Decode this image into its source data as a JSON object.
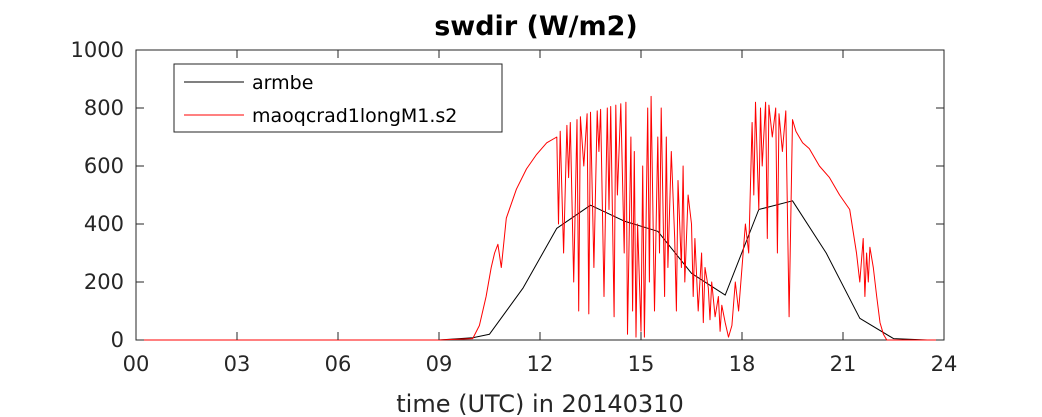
{
  "chart_data": {
    "type": "line",
    "title": "swdir  (W/m2)",
    "xlabel": "time (UTC) in 20140310",
    "ylabel": "",
    "xlim": [
      0,
      24
    ],
    "ylim": [
      0,
      1000
    ],
    "xticks": [
      0,
      3,
      6,
      9,
      12,
      15,
      18,
      21,
      24
    ],
    "xtick_labels": [
      "00",
      "03",
      "06",
      "09",
      "12",
      "15",
      "18",
      "21",
      "24"
    ],
    "yticks": [
      0,
      200,
      400,
      600,
      800,
      1000
    ],
    "ytick_labels": [
      "0",
      "200",
      "400",
      "600",
      "800",
      "1000"
    ],
    "grid": false,
    "legend_position": "top-left",
    "series": [
      {
        "name": "armbe",
        "color": "#000000",
        "x": [
          0,
          1,
          2,
          3,
          4,
          5,
          6,
          7,
          8,
          9,
          10,
          10.5,
          11.5,
          12.5,
          13.5,
          14.5,
          15.5,
          16.5,
          17.5,
          18.5,
          19.5,
          20.5,
          21.5,
          22.5,
          23.5,
          24
        ],
        "y": [
          0,
          0,
          0,
          0,
          0,
          0,
          0,
          0,
          0,
          0,
          8,
          20,
          180,
          385,
          465,
          410,
          375,
          230,
          155,
          450,
          480,
          300,
          75,
          5,
          0,
          0
        ]
      },
      {
        "name": "maoqcrad1longM1.s2",
        "color": "#ff0000",
        "x": [
          0,
          9,
          10.0,
          10.2,
          10.4,
          10.55,
          10.65,
          10.75,
          10.85,
          11.0,
          11.3,
          11.6,
          11.9,
          12.2,
          12.5,
          12.55,
          12.6,
          12.7,
          12.8,
          12.85,
          12.9,
          13.0,
          13.1,
          13.15,
          13.2,
          13.3,
          13.4,
          13.45,
          13.5,
          13.6,
          13.7,
          13.75,
          13.8,
          13.9,
          14.0,
          14.05,
          14.1,
          14.2,
          14.25,
          14.3,
          14.4,
          14.5,
          14.55,
          14.6,
          14.7,
          14.75,
          14.8,
          14.85,
          14.9,
          15.0,
          15.05,
          15.1,
          15.2,
          15.25,
          15.3,
          15.4,
          15.5,
          15.55,
          15.6,
          15.7,
          15.75,
          15.8,
          15.9,
          16.0,
          16.05,
          16.1,
          16.2,
          16.25,
          16.3,
          16.4,
          16.5,
          16.55,
          16.6,
          16.7,
          16.8,
          16.85,
          16.9,
          17.0,
          17.05,
          17.1,
          17.2,
          17.3,
          17.35,
          17.4,
          17.5,
          17.6,
          17.7,
          17.8,
          17.9,
          18.0,
          18.1,
          18.2,
          18.3,
          18.35,
          18.4,
          18.5,
          18.55,
          18.6,
          18.7,
          18.75,
          18.8,
          18.9,
          19.0,
          19.05,
          19.1,
          19.2,
          19.3,
          19.4,
          19.5,
          19.6,
          19.7,
          19.8,
          20.0,
          20.3,
          20.6,
          20.9,
          21.2,
          21.4,
          21.5,
          21.6,
          21.65,
          21.7,
          21.75,
          21.8,
          21.9,
          22.0,
          22.1,
          22.2,
          22.3,
          22.5,
          23,
          24
        ],
        "y": [
          0,
          0,
          5,
          50,
          150,
          250,
          300,
          330,
          250,
          420,
          520,
          590,
          640,
          680,
          700,
          400,
          720,
          300,
          740,
          560,
          750,
          200,
          760,
          100,
          770,
          600,
          780,
          90,
          785,
          250,
          790,
          650,
          795,
          150,
          800,
          450,
          805,
          80,
          810,
          500,
          815,
          300,
          820,
          20,
          700,
          100,
          650,
          10,
          400,
          30,
          600,
          10,
          800,
          200,
          840,
          100,
          700,
          300,
          800,
          150,
          700,
          250,
          650,
          350,
          100,
          550,
          250,
          600,
          200,
          500,
          400,
          150,
          350,
          100,
          300,
          60,
          250,
          180,
          70,
          200,
          80,
          150,
          30,
          120,
          60,
          10,
          50,
          200,
          100,
          250,
          400,
          300,
          750,
          500,
          820,
          450,
          800,
          600,
          820,
          350,
          810,
          700,
          800,
          300,
          780,
          650,
          790,
          80,
          760,
          720,
          700,
          680,
          660,
          600,
          560,
          500,
          450,
          300,
          200,
          350,
          150,
          300,
          200,
          320,
          250,
          150,
          60,
          20,
          0,
          0,
          0,
          0
        ]
      }
    ]
  }
}
